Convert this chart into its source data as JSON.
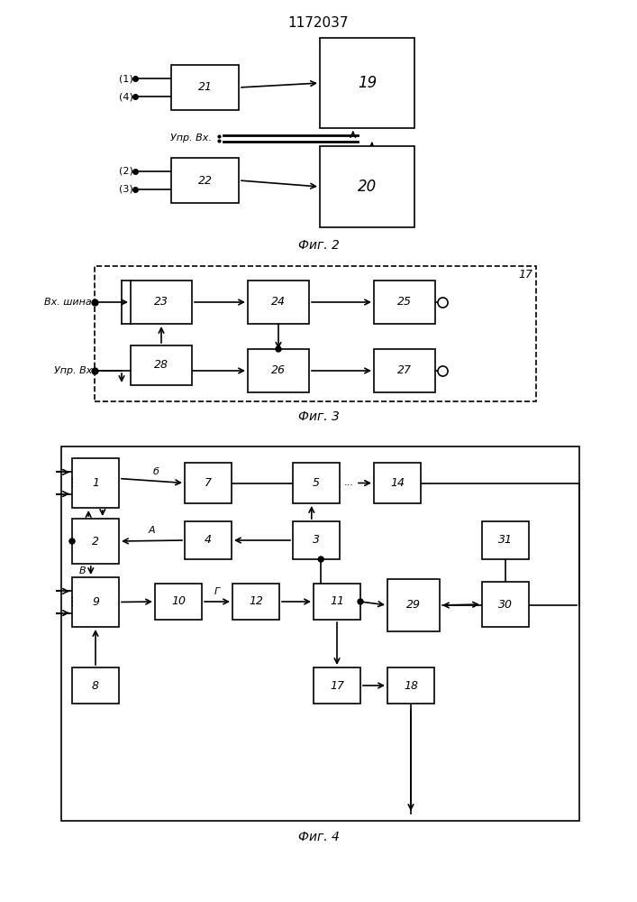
{
  "title": "1172037",
  "fig2_caption": "Фиг. 2",
  "fig3_caption": "Фиг. 3",
  "fig4_caption": "Фиг. 4",
  "bg_color": "#ffffff",
  "box_color": "#000000",
  "line_color": "#000000",
  "text_color": "#000000",
  "font_size_label": 9,
  "font_size_caption": 10,
  "font_size_title": 11
}
